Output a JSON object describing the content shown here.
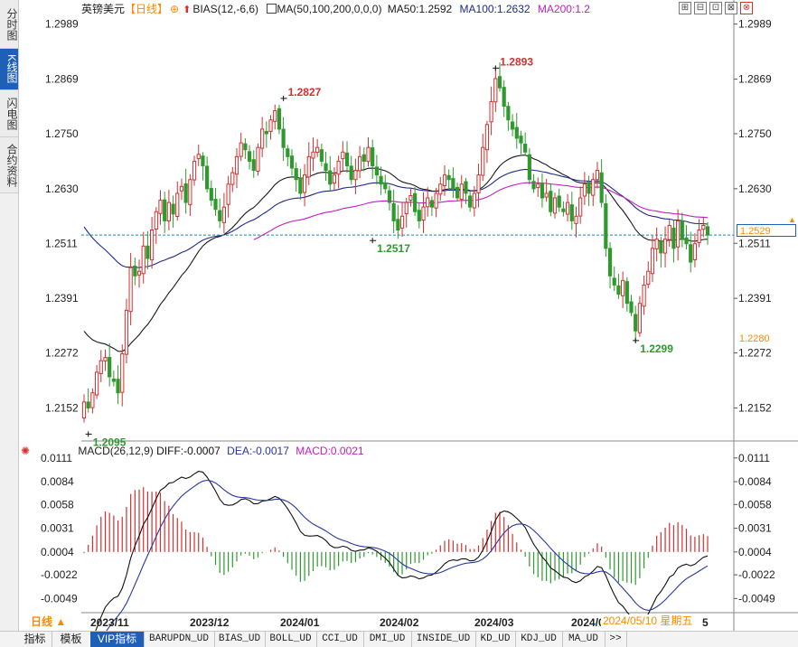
{
  "left_tabs": [
    "分时图",
    "K线图",
    "闪电图",
    "合约资料"
  ],
  "legend": {
    "instrument": "英镑美元",
    "period": "【日线】",
    "gear": "⊕",
    "bias": "BIAS(12,-6,6)",
    "ma_label": "MA(50,100,200,0,0,0)",
    "ma50": "MA50:1.2592",
    "ma100": "MA100:1.2632",
    "ma200": "MA200:1.2"
  },
  "toolbar": [
    "⊞",
    "⊟",
    "⊡",
    "⊠",
    "⊗"
  ],
  "macd_legend": {
    "title": "MACD(26,12,9)",
    "diff": "DIFF:-0.0007",
    "dea": "DEA:-0.0017",
    "macd": "MACD:0.0021"
  },
  "price_tags": {
    "current": "1.2529",
    "lowest_visible": "1.2280"
  },
  "period_button": "日线 ▲",
  "cursor_date": "2024/05/10 星期五",
  "x_labels": [
    "2023/11",
    "2023/12",
    "2024/01",
    "2024/02",
    "2024/03",
    "2024/0",
    "5"
  ],
  "bottom_tabs": [
    "指标",
    "模板",
    "VIP指标",
    "BARUPDN_UD",
    "BIAS_UD",
    "BOLL_UD",
    "CCI_UD",
    "DMI_UD",
    "INSIDE_UD",
    "KD_UD",
    "KDJ_UD",
    "MA_UD",
    ">>"
  ],
  "colors": {
    "up": "#d43030",
    "down": "#2e9a2e",
    "ma50": "#1a1a1a",
    "ma100": "#1e2a8c",
    "ma200": "#c020c0",
    "diff": "#111111",
    "dea": "#2838a0",
    "accent": "#1e5fb8",
    "orange": "#ff8a00"
  },
  "chart_data": [
    {
      "type": "candlestick",
      "title": "英镑美元 日线",
      "ylim": [
        1.208,
        1.301
      ],
      "y_ticks": [
        "1.2989",
        "1.2869",
        "1.2750",
        "1.2630",
        "1.2511",
        "1.2391",
        "1.2272",
        "1.2152"
      ],
      "series_close": [
        1.2165,
        1.2152,
        1.2185,
        1.223,
        1.2255,
        1.2262,
        1.222,
        1.221,
        1.2185,
        1.227,
        1.2365,
        1.2458,
        1.244,
        1.245,
        1.2505,
        1.2478,
        1.254,
        1.258,
        1.2605,
        1.256,
        1.26,
        1.2575,
        1.262,
        1.2635,
        1.26,
        1.265,
        1.269,
        1.2705,
        1.268,
        1.263,
        1.2605,
        1.2585,
        1.256,
        1.259,
        1.264,
        1.2665,
        1.27,
        1.273,
        1.2715,
        1.269,
        1.267,
        1.272,
        1.276,
        1.275,
        1.278,
        1.28,
        1.276,
        1.272,
        1.27,
        1.2675,
        1.265,
        1.262,
        1.266,
        1.27,
        1.271,
        1.272,
        1.269,
        1.267,
        1.264,
        1.266,
        1.269,
        1.271,
        1.268,
        1.265,
        1.267,
        1.27,
        1.269,
        1.272,
        1.268,
        1.266,
        1.264,
        1.263,
        1.26,
        1.256,
        1.254,
        1.257,
        1.26,
        1.2615,
        1.258,
        1.256,
        1.259,
        1.261,
        1.259,
        1.262,
        1.264,
        1.266,
        1.265,
        1.263,
        1.261,
        1.264,
        1.262,
        1.259,
        1.262,
        1.266,
        1.272,
        1.277,
        1.282,
        1.287,
        1.285,
        1.281,
        1.278,
        1.276,
        1.274,
        1.273,
        1.271,
        1.265,
        1.263,
        1.264,
        1.261,
        1.262,
        1.258,
        1.261,
        1.259,
        1.258,
        1.26,
        1.256,
        1.257,
        1.261,
        1.264,
        1.262,
        1.265,
        1.267,
        1.26,
        1.25,
        1.244,
        1.242,
        1.24,
        1.243,
        1.238,
        1.236,
        1.232,
        1.238,
        1.242,
        1.245,
        1.25,
        1.252,
        1.249,
        1.252,
        1.255,
        1.25,
        1.256,
        1.252,
        1.251,
        1.247,
        1.251,
        1.254,
        1.255,
        1.2529
      ],
      "annotations": [
        {
          "label": "1.2827",
          "kind": "high",
          "value": 1.2827
        },
        {
          "label": "1.2893",
          "kind": "high",
          "value": 1.2893
        },
        {
          "label": "1.2517",
          "kind": "low",
          "value": 1.2517
        },
        {
          "label": "1.2299",
          "kind": "low",
          "value": 1.2299
        },
        {
          "label": "1.2095",
          "kind": "low",
          "value": 1.2095
        }
      ],
      "moving_averages": [
        {
          "name": "MA50",
          "last": 1.2592
        },
        {
          "name": "MA100",
          "last": 1.2632
        },
        {
          "name": "MA200",
          "last": 1.2
        }
      ],
      "current_price": 1.2529
    },
    {
      "type": "bar+line",
      "title": "MACD(26,12,9)",
      "ylim": [
        -0.0062,
        0.0118
      ],
      "y_ticks": [
        "0.0111",
        "0.0084",
        "0.0058",
        "0.0031",
        "0.0004",
        "-0.0022",
        "-0.0049"
      ],
      "series": [
        {
          "name": "DIFF",
          "last": -0.0007
        },
        {
          "name": "DEA",
          "last": -0.0017
        },
        {
          "name": "MACD",
          "last": 0.0021
        }
      ],
      "x_labels": [
        "2023/11",
        "2023/12",
        "2024/01",
        "2024/02",
        "2024/03",
        "2024/0",
        "5"
      ]
    }
  ]
}
